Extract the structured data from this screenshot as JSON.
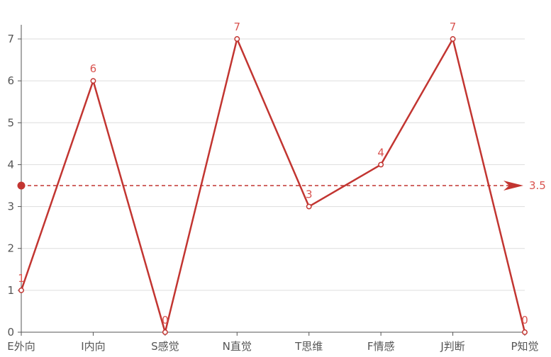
{
  "chart_data": {
    "type": "line",
    "categories": [
      "E外向",
      "I内向",
      "S感觉",
      "N直觉",
      "T思维",
      "F情感",
      "J判断",
      "P知觉"
    ],
    "series": [
      {
        "values": [
          1,
          6,
          0,
          7,
          3,
          4,
          7,
          0
        ]
      }
    ],
    "ylim": [
      0,
      7
    ],
    "y_ticks": [
      0,
      1,
      2,
      3,
      4,
      5,
      6,
      7
    ],
    "mark_line": {
      "type": "average",
      "value": 3.5,
      "label": "3.5"
    },
    "show_data_labels": true,
    "grid": true,
    "colors": {
      "line": "#c23531",
      "label": "#d9534f",
      "grid": "#dddddd",
      "axis": "#555555"
    }
  }
}
